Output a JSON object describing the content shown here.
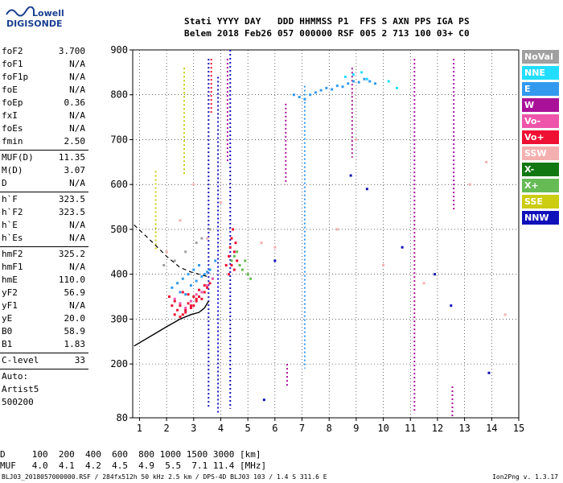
{
  "logo": {
    "line1": "Lowell",
    "line2": "DIGISONDE"
  },
  "header": {
    "line1": "Stati YYYY DAY   DDD HHMMSS P1  FFS S AXN PPS IGA PS",
    "line2": "Belem 2018 Feb26 057 000000 RSF 005 2 713 100 03+ C0"
  },
  "params": {
    "group1": [
      [
        "foF2",
        "3.700"
      ],
      [
        "foF1",
        "N/A"
      ],
      [
        "foF1p",
        "N/A"
      ],
      [
        "foE",
        "N/A"
      ],
      [
        "foEp",
        "0.36"
      ],
      [
        "fxI",
        "N/A"
      ],
      [
        "foEs",
        "N/A"
      ],
      [
        "fmin",
        "2.50"
      ]
    ],
    "group2": [
      [
        "MUF(D)",
        "11.35"
      ],
      [
        "M(D)",
        "3.07"
      ],
      [
        "D",
        "N/A"
      ]
    ],
    "group3": [
      [
        "h`F",
        "323.5"
      ],
      [
        "h`F2",
        "323.5"
      ],
      [
        "h`E",
        "N/A"
      ],
      [
        "h`Es",
        "N/A"
      ]
    ],
    "group4": [
      [
        "hmF2",
        "325.2"
      ],
      [
        "hmF1",
        "N/A"
      ],
      [
        "hmE",
        "110.0"
      ],
      [
        "yF2",
        "56.9"
      ],
      [
        "yF1",
        "N/A"
      ],
      [
        "yE",
        "20.0"
      ],
      [
        "B0",
        "58.9"
      ],
      [
        "B1",
        "1.83"
      ]
    ],
    "group5": [
      [
        "C-level",
        "33"
      ]
    ],
    "auto": "Auto:",
    "artist": "Artist5",
    "code": "500200"
  },
  "legend": [
    {
      "label": "NoVal",
      "color": "#a0a0a0"
    },
    {
      "label": "NNE",
      "color": "#22ddff"
    },
    {
      "label": "E",
      "color": "#3399ee"
    },
    {
      "label": "W",
      "color": "#aa1199"
    },
    {
      "label": "Vo-",
      "color": "#ee55aa"
    },
    {
      "label": "Vo+",
      "color": "#ee1133"
    },
    {
      "label": "SSW",
      "color": "#f4b0b0"
    },
    {
      "label": "X-",
      "color": "#117711"
    },
    {
      "label": "X+",
      "color": "#66bb55"
    },
    {
      "label": "SSE",
      "color": "#cccc11"
    },
    {
      "label": "NNW",
      "color": "#1111bb"
    }
  ],
  "bottom": {
    "d_row": "D     100  200  400  600  800 1000 1500 3000 [km]",
    "muf_row": "MUF   4.0  4.1  4.2  4.5  4.9  5.5  7.1 11.4 [MHz]",
    "footer": "BLJ03_2018057000000.RSF / 284fx512h 50 kHz 2.5 km / DPS-4D BLJ03 103 / 1.4 S 311.6 E",
    "version": "Ion2Png v. 1.3.17"
  },
  "chart_data": {
    "type": "scatter",
    "x_ticks": [
      1,
      2,
      3,
      4,
      5,
      6,
      7,
      8,
      9,
      10,
      11,
      12,
      13,
      14,
      15
    ],
    "y_ticks": [
      80,
      200,
      300,
      400,
      500,
      600,
      700,
      800,
      900
    ],
    "xlim": [
      0.75,
      15
    ],
    "ylim": [
      80,
      900
    ],
    "grid": true,
    "legend_position": "right",
    "vertical_traces": [
      {
        "x": 2.65,
        "y0": 620,
        "y1": 860,
        "color": "#cccc11"
      },
      {
        "x": 1.6,
        "y0": 450,
        "y1": 630,
        "color": "#cccc11"
      },
      {
        "x": 3.55,
        "y0": 100,
        "y1": 880,
        "color": "#1111bb"
      },
      {
        "x": 3.65,
        "y0": 760,
        "y1": 880,
        "color": "#ee1133"
      },
      {
        "x": 3.9,
        "y0": 90,
        "y1": 840,
        "color": "#1111bb"
      },
      {
        "x": 4.35,
        "y0": 100,
        "y1": 900,
        "color": "#1111bb"
      },
      {
        "x": 4.25,
        "y0": 650,
        "y1": 880,
        "color": "#aa1199"
      },
      {
        "x": 6.4,
        "y0": 600,
        "y1": 780,
        "color": "#aa1199"
      },
      {
        "x": 6.45,
        "y0": 150,
        "y1": 200,
        "color": "#aa1199"
      },
      {
        "x": 7.1,
        "y0": 190,
        "y1": 820,
        "color": "#3399ee"
      },
      {
        "x": 8.85,
        "y0": 660,
        "y1": 860,
        "color": "#aa1199"
      },
      {
        "x": 11.15,
        "y0": 90,
        "y1": 880,
        "color": "#aa1199"
      },
      {
        "x": 12.6,
        "y0": 540,
        "y1": 880,
        "color": "#aa1199"
      },
      {
        "x": 12.55,
        "y0": 80,
        "y1": 150,
        "color": "#aa1199"
      }
    ],
    "scatter_series": [
      {
        "x": [
          2.1,
          2.2,
          2.3,
          2.4,
          2.5,
          2.6,
          2.7,
          2.8,
          2.9,
          3.0,
          3.1,
          3.2,
          3.3,
          3.4,
          3.5,
          3.6,
          2.6,
          2.8,
          3.0,
          3.2,
          3.4,
          2.3,
          2.5,
          2.7,
          2.9,
          3.1
        ],
        "y": [
          350,
          330,
          340,
          320,
          330,
          310,
          320,
          335,
          325,
          330,
          340,
          350,
          345,
          360,
          370,
          380,
          360,
          355,
          350,
          365,
          375,
          310,
          305,
          315,
          330,
          345
        ],
        "color": "#ee1133"
      },
      {
        "x": [
          2.2,
          2.4,
          2.6,
          2.8,
          3.0,
          3.2,
          3.4,
          3.6,
          3.8,
          2.5,
          2.7,
          2.9,
          3.1,
          3.3,
          3.5
        ],
        "y": [
          370,
          380,
          390,
          400,
          410,
          420,
          400,
          410,
          430,
          360,
          355,
          375,
          385,
          395,
          405
        ],
        "color": "#3399ee"
      },
      {
        "x": [
          2.3,
          2.5,
          2.7,
          2.9,
          3.1,
          3.3,
          3.5,
          3.7
        ],
        "y": [
          345,
          335,
          325,
          340,
          355,
          360,
          375,
          390
        ],
        "color": "#ee55aa"
      },
      {
        "x": [
          4.2,
          4.3,
          4.35,
          4.4,
          4.45,
          4.5,
          4.4,
          4.3,
          4.5,
          4.6,
          4.55
        ],
        "y": [
          420,
          440,
          460,
          480,
          500,
          450,
          420,
          400,
          410,
          430,
          470
        ],
        "color": "#ee1133"
      },
      {
        "x": [
          4.4,
          4.5,
          4.6,
          4.7,
          4.8,
          4.9,
          5.0,
          5.1
        ],
        "y": [
          430,
          440,
          450,
          420,
          410,
          430,
          400,
          390
        ],
        "color": "#66bb55"
      },
      {
        "x": [
          6.7,
          6.9,
          7.1,
          7.3,
          7.5,
          7.7,
          7.9,
          8.1,
          8.3,
          8.5,
          8.7,
          8.9,
          9.1,
          9.3,
          9.5,
          9.7
        ],
        "y": [
          800,
          795,
          790,
          800,
          805,
          810,
          815,
          812,
          820,
          818,
          825,
          830,
          828,
          835,
          830,
          825
        ],
        "color": "#3399ee"
      },
      {
        "x": [
          8.6,
          8.9,
          9.2,
          9.4,
          10.2,
          10.5
        ],
        "y": [
          840,
          845,
          850,
          835,
          830,
          815
        ],
        "color": "#22ddff"
      },
      {
        "x": [
          2.0,
          2.5,
          3.0,
          3.5,
          4.0,
          5.5,
          6.0,
          8.3,
          9.0,
          10.0,
          11.5,
          13.2,
          13.8,
          14.5
        ],
        "y": [
          450,
          520,
          600,
          480,
          560,
          470,
          460,
          500,
          700,
          420,
          380,
          600,
          650,
          310
        ],
        "color": "#f4b0b0"
      },
      {
        "x": [
          1.9,
          2.3,
          2.7,
          3.1,
          3.3,
          3.6
        ],
        "y": [
          420,
          430,
          450,
          470,
          480,
          500
        ],
        "color": "#a0a0a0"
      },
      {
        "x": [
          5.6,
          6.0,
          8.8,
          9.4,
          10.7,
          11.9,
          12.5,
          13.9
        ],
        "y": [
          120,
          430,
          620,
          590,
          460,
          400,
          330,
          180
        ],
        "color": "#1111bb"
      }
    ],
    "trace_dashed": {
      "x": [
        0.8,
        1.5,
        2.0,
        2.5,
        2.9,
        3.2,
        3.5
      ],
      "y": [
        510,
        470,
        440,
        415,
        405,
        400,
        395
      ]
    },
    "trace_solid": {
      "x": [
        0.8,
        1.5,
        2.0,
        2.5,
        2.9,
        3.2,
        3.4,
        3.55
      ],
      "y": [
        240,
        265,
        283,
        300,
        310,
        315,
        325,
        340
      ]
    }
  }
}
